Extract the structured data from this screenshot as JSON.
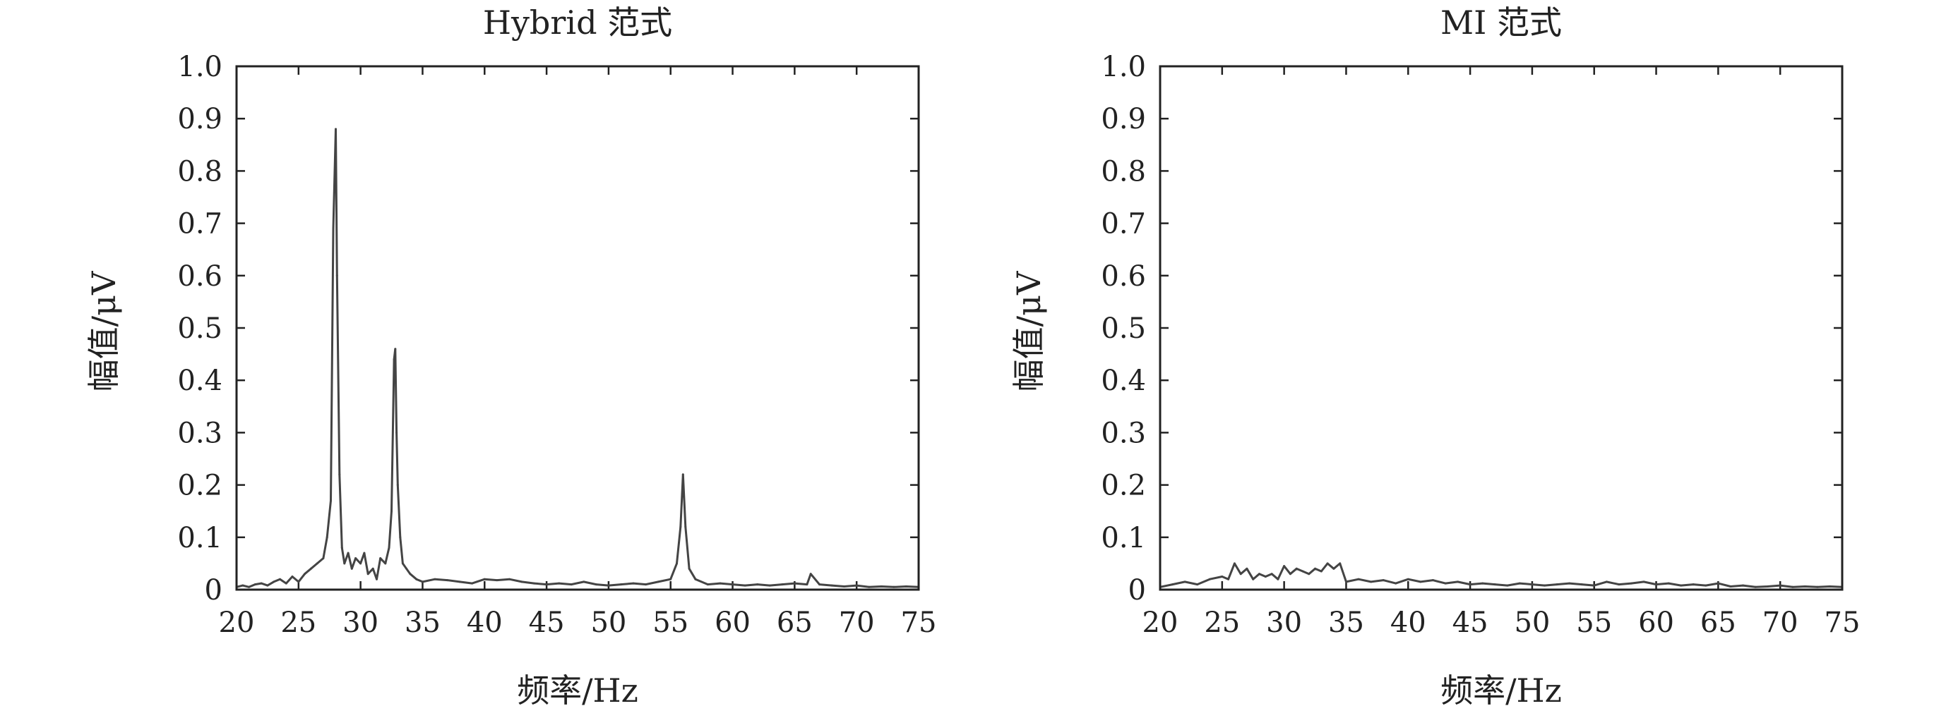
{
  "figure": {
    "panels": [
      {
        "title": "Hybrid 范式",
        "xlabel": "频率/Hz",
        "ylabel": "幅值/μV"
      },
      {
        "title": "MI 范式",
        "xlabel": "频率/Hz",
        "ylabel": "幅值/μV"
      }
    ]
  },
  "chart_data": [
    {
      "type": "line",
      "title": "Hybrid 范式",
      "xlabel": "频率/Hz",
      "ylabel": "幅值/μV",
      "xlim": [
        20,
        75
      ],
      "ylim": [
        0,
        1.0
      ],
      "xticks": [
        "20",
        "25",
        "30",
        "35",
        "40",
        "45",
        "50",
        "55",
        "60",
        "65",
        "70",
        "75"
      ],
      "yticks": [
        "0",
        "0.1",
        "0.2",
        "0.3",
        "0.4",
        "0.5",
        "0.6",
        "0.7",
        "0.8",
        "0.9",
        "1.0"
      ],
      "grid": false,
      "color": "#444444",
      "series": [
        {
          "x": [
            20,
            20.5,
            21,
            21.5,
            22,
            22.5,
            23,
            23.5,
            24,
            24.5,
            25,
            25.5,
            26,
            26.5,
            27,
            27.3,
            27.6,
            27.8,
            28.0,
            28.1,
            28.3,
            28.5,
            28.7,
            29.0,
            29.3,
            29.6,
            30.0,
            30.3,
            30.6,
            31.0,
            31.3,
            31.6,
            32.0,
            32.3,
            32.5,
            32.7,
            32.8,
            32.9,
            33.0,
            33.2,
            33.4,
            33.7,
            34.0,
            34.5,
            35,
            36,
            37,
            38,
            39,
            40,
            41,
            42,
            43,
            44,
            45,
            46,
            47,
            48,
            49,
            50,
            51,
            52,
            53,
            54,
            55,
            55.5,
            55.8,
            56.0,
            56.2,
            56.5,
            57,
            58,
            59,
            60,
            61,
            62,
            63,
            64,
            65,
            66,
            66.3,
            67,
            68,
            69,
            70,
            71,
            72,
            73,
            74,
            75
          ],
          "y": [
            0.005,
            0.008,
            0.005,
            0.01,
            0.012,
            0.008,
            0.015,
            0.02,
            0.012,
            0.025,
            0.015,
            0.03,
            0.04,
            0.05,
            0.06,
            0.1,
            0.17,
            0.69,
            0.88,
            0.6,
            0.22,
            0.08,
            0.05,
            0.07,
            0.04,
            0.06,
            0.05,
            0.07,
            0.03,
            0.04,
            0.02,
            0.06,
            0.05,
            0.08,
            0.15,
            0.44,
            0.46,
            0.3,
            0.2,
            0.1,
            0.05,
            0.04,
            0.03,
            0.02,
            0.015,
            0.02,
            0.018,
            0.015,
            0.012,
            0.02,
            0.018,
            0.02,
            0.015,
            0.012,
            0.01,
            0.012,
            0.01,
            0.015,
            0.01,
            0.008,
            0.01,
            0.012,
            0.01,
            0.015,
            0.02,
            0.05,
            0.12,
            0.22,
            0.12,
            0.04,
            0.02,
            0.01,
            0.012,
            0.01,
            0.008,
            0.01,
            0.008,
            0.01,
            0.012,
            0.01,
            0.03,
            0.01,
            0.008,
            0.006,
            0.008,
            0.005,
            0.006,
            0.005,
            0.006,
            0.005
          ]
        }
      ]
    },
    {
      "type": "line",
      "title": "MI 范式",
      "xlabel": "频率/Hz",
      "ylabel": "幅值/μV",
      "xlim": [
        20,
        75
      ],
      "ylim": [
        0,
        1.0
      ],
      "xticks": [
        "20",
        "25",
        "30",
        "35",
        "40",
        "45",
        "50",
        "55",
        "60",
        "65",
        "70",
        "75"
      ],
      "yticks": [
        "0",
        "0.1",
        "0.2",
        "0.3",
        "0.4",
        "0.5",
        "0.6",
        "0.7",
        "0.8",
        "0.9",
        "1.0"
      ],
      "grid": false,
      "color": "#444444",
      "series": [
        {
          "x": [
            20,
            21,
            22,
            23,
            24,
            25,
            25.5,
            26,
            26.5,
            27,
            27.5,
            28,
            28.5,
            29,
            29.5,
            30,
            30.5,
            31,
            31.5,
            32,
            32.5,
            33,
            33.5,
            34,
            34.5,
            35,
            36,
            37,
            38,
            39,
            40,
            41,
            42,
            43,
            44,
            45,
            46,
            47,
            48,
            49,
            50,
            51,
            52,
            53,
            54,
            55,
            56,
            57,
            58,
            59,
            60,
            61,
            62,
            63,
            64,
            65,
            66,
            67,
            68,
            69,
            70,
            71,
            72,
            73,
            74,
            75
          ],
          "y": [
            0.005,
            0.01,
            0.015,
            0.01,
            0.02,
            0.025,
            0.02,
            0.05,
            0.03,
            0.04,
            0.02,
            0.03,
            0.025,
            0.03,
            0.02,
            0.045,
            0.03,
            0.04,
            0.035,
            0.03,
            0.04,
            0.035,
            0.05,
            0.04,
            0.05,
            0.015,
            0.02,
            0.015,
            0.018,
            0.012,
            0.02,
            0.015,
            0.018,
            0.012,
            0.015,
            0.01,
            0.012,
            0.01,
            0.008,
            0.012,
            0.01,
            0.008,
            0.01,
            0.012,
            0.01,
            0.008,
            0.015,
            0.01,
            0.012,
            0.015,
            0.01,
            0.012,
            0.008,
            0.01,
            0.008,
            0.012,
            0.006,
            0.008,
            0.005,
            0.006,
            0.008,
            0.005,
            0.006,
            0.005,
            0.006,
            0.005
          ]
        }
      ]
    }
  ]
}
